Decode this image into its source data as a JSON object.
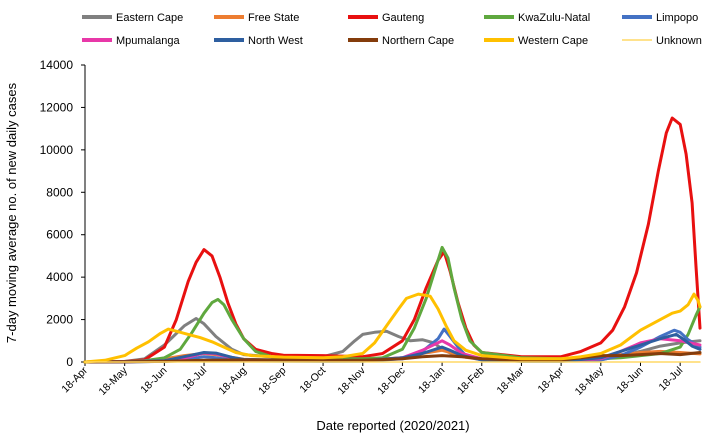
{
  "chart_data": {
    "type": "line",
    "title": "",
    "xlabel": "Date reported (2020/2021)",
    "ylabel": "7-day moving average no. of new daily cases",
    "ylim": [
      0,
      14000
    ],
    "yticks": [
      "0",
      "2000",
      "4000",
      "6000",
      "8000",
      "10000",
      "12000",
      "14000"
    ],
    "x_ticks": [
      "18-Apr",
      "18-May",
      "18-Jun",
      "18-Jul",
      "18-Aug",
      "18-Sep",
      "18-Oct",
      "18-Nov",
      "18-Dec",
      "18-Jan",
      "18-Feb",
      "18-Mar",
      "18-Apr",
      "18-May",
      "18-Jun",
      "18-Jul"
    ],
    "x_end_offset": 15.5,
    "grid": false,
    "legend_position": "top",
    "series": [
      {
        "name": "Eastern Cape",
        "color": "#808080",
        "points": [
          [
            0,
            0
          ],
          [
            1,
            30
          ],
          [
            1.5,
            150
          ],
          [
            2,
            800
          ],
          [
            2.5,
            1700
          ],
          [
            2.8,
            2050
          ],
          [
            3,
            1800
          ],
          [
            3.3,
            1200
          ],
          [
            3.7,
            600
          ],
          [
            4,
            350
          ],
          [
            5,
            200
          ],
          [
            6,
            250
          ],
          [
            6.5,
            500
          ],
          [
            6.8,
            1000
          ],
          [
            7,
            1300
          ],
          [
            7.3,
            1400
          ],
          [
            7.6,
            1450
          ],
          [
            7.9,
            1200
          ],
          [
            8.2,
            1000
          ],
          [
            8.5,
            1050
          ],
          [
            8.8,
            900
          ],
          [
            9,
            600
          ],
          [
            9.3,
            350
          ],
          [
            10,
            150
          ],
          [
            11,
            100
          ],
          [
            12,
            100
          ],
          [
            13,
            100
          ],
          [
            14,
            500
          ],
          [
            14.5,
            750
          ],
          [
            15,
            900
          ],
          [
            15.5,
            1000
          ]
        ]
      },
      {
        "name": "Free State",
        "color": "#ed7d31",
        "points": [
          [
            0,
            0
          ],
          [
            1,
            15
          ],
          [
            1.5,
            60
          ],
          [
            2,
            150
          ],
          [
            2.5,
            300
          ],
          [
            3,
            400
          ],
          [
            3.3,
            350
          ],
          [
            3.7,
            220
          ],
          [
            4,
            130
          ],
          [
            5,
            60
          ],
          [
            6,
            60
          ],
          [
            7,
            80
          ],
          [
            8,
            200
          ],
          [
            8.5,
            400
          ],
          [
            9,
            550
          ],
          [
            9.3,
            400
          ],
          [
            9.6,
            220
          ],
          [
            10,
            110
          ],
          [
            11,
            60
          ],
          [
            12,
            60
          ],
          [
            12.5,
            100
          ],
          [
            13,
            200
          ],
          [
            13.5,
            350
          ],
          [
            14,
            450
          ],
          [
            14.5,
            500
          ],
          [
            15,
            450
          ],
          [
            15.5,
            380
          ]
        ]
      },
      {
        "name": "Gauteng",
        "color": "#e81010",
        "points": [
          [
            0,
            0
          ],
          [
            1,
            20
          ],
          [
            1.5,
            100
          ],
          [
            2,
            700
          ],
          [
            2.3,
            2000
          ],
          [
            2.6,
            3800
          ],
          [
            2.8,
            4700
          ],
          [
            3,
            5300
          ],
          [
            3.2,
            5000
          ],
          [
            3.4,
            4000
          ],
          [
            3.6,
            2800
          ],
          [
            3.8,
            1800
          ],
          [
            4,
            1100
          ],
          [
            4.3,
            600
          ],
          [
            4.7,
            400
          ],
          [
            5,
            320
          ],
          [
            6,
            300
          ],
          [
            7,
            250
          ],
          [
            7.5,
            400
          ],
          [
            8,
            1000
          ],
          [
            8.3,
            2000
          ],
          [
            8.6,
            3500
          ],
          [
            8.9,
            4800
          ],
          [
            9.05,
            5200
          ],
          [
            9.2,
            4300
          ],
          [
            9.4,
            2800
          ],
          [
            9.6,
            1600
          ],
          [
            9.8,
            800
          ],
          [
            10,
            450
          ],
          [
            11,
            250
          ],
          [
            12,
            250
          ],
          [
            12.5,
            500
          ],
          [
            13,
            900
          ],
          [
            13.3,
            1500
          ],
          [
            13.6,
            2600
          ],
          [
            13.9,
            4200
          ],
          [
            14.2,
            6500
          ],
          [
            14.45,
            9000
          ],
          [
            14.65,
            10800
          ],
          [
            14.8,
            11500
          ],
          [
            15,
            11200
          ],
          [
            15.15,
            9800
          ],
          [
            15.3,
            7500
          ],
          [
            15.4,
            4500
          ],
          [
            15.5,
            1600
          ]
        ]
      },
      {
        "name": "KwaZulu-Natal",
        "color": "#5fa83e",
        "points": [
          [
            0,
            0
          ],
          [
            1,
            15
          ],
          [
            1.5,
            60
          ],
          [
            2,
            200
          ],
          [
            2.4,
            600
          ],
          [
            2.7,
            1400
          ],
          [
            3,
            2300
          ],
          [
            3.2,
            2800
          ],
          [
            3.35,
            2950
          ],
          [
            3.5,
            2700
          ],
          [
            3.7,
            2000
          ],
          [
            4,
            1100
          ],
          [
            4.3,
            500
          ],
          [
            4.7,
            250
          ],
          [
            5,
            200
          ],
          [
            6,
            150
          ],
          [
            7,
            150
          ],
          [
            7.5,
            200
          ],
          [
            8,
            600
          ],
          [
            8.3,
            1600
          ],
          [
            8.6,
            3000
          ],
          [
            8.85,
            4500
          ],
          [
            9,
            5400
          ],
          [
            9.15,
            4900
          ],
          [
            9.3,
            3500
          ],
          [
            9.5,
            2000
          ],
          [
            9.7,
            1000
          ],
          [
            10,
            450
          ],
          [
            11,
            200
          ],
          [
            12,
            150
          ],
          [
            13,
            150
          ],
          [
            13.5,
            200
          ],
          [
            14,
            300
          ],
          [
            14.5,
            400
          ],
          [
            15,
            700
          ],
          [
            15.2,
            1300
          ],
          [
            15.4,
            2200
          ],
          [
            15.5,
            2600
          ]
        ]
      },
      {
        "name": "Limpopo",
        "color": "#4472c4",
        "points": [
          [
            0,
            0
          ],
          [
            1,
            5
          ],
          [
            2,
            30
          ],
          [
            2.5,
            100
          ],
          [
            3,
            250
          ],
          [
            3.3,
            200
          ],
          [
            3.7,
            100
          ],
          [
            4,
            50
          ],
          [
            6,
            30
          ],
          [
            7,
            40
          ],
          [
            8,
            150
          ],
          [
            8.5,
            500
          ],
          [
            8.9,
            1100
          ],
          [
            9.05,
            1550
          ],
          [
            9.2,
            1200
          ],
          [
            9.4,
            700
          ],
          [
            9.6,
            300
          ],
          [
            10,
            100
          ],
          [
            11,
            40
          ],
          [
            12,
            40
          ],
          [
            13,
            100
          ],
          [
            13.5,
            300
          ],
          [
            14,
            700
          ],
          [
            14.5,
            1200
          ],
          [
            14.85,
            1500
          ],
          [
            15,
            1400
          ],
          [
            15.2,
            1050
          ],
          [
            15.5,
            700
          ]
        ]
      },
      {
        "name": "Mpumalanga",
        "color": "#e838a8",
        "points": [
          [
            0,
            0
          ],
          [
            1,
            8
          ],
          [
            2,
            60
          ],
          [
            2.5,
            180
          ],
          [
            3,
            420
          ],
          [
            3.3,
            380
          ],
          [
            3.7,
            200
          ],
          [
            4,
            100
          ],
          [
            6,
            50
          ],
          [
            7,
            60
          ],
          [
            8,
            200
          ],
          [
            8.5,
            550
          ],
          [
            9,
            1000
          ],
          [
            9.2,
            800
          ],
          [
            9.5,
            400
          ],
          [
            10,
            150
          ],
          [
            11,
            50
          ],
          [
            12,
            50
          ],
          [
            13,
            150
          ],
          [
            13.5,
            500
          ],
          [
            14,
            900
          ],
          [
            14.5,
            1100
          ],
          [
            15,
            1000
          ],
          [
            15.5,
            800
          ]
        ]
      },
      {
        "name": "North West",
        "color": "#2e5fa0",
        "points": [
          [
            0,
            0
          ],
          [
            1,
            8
          ],
          [
            2,
            60
          ],
          [
            2.5,
            250
          ],
          [
            3,
            450
          ],
          [
            3.3,
            420
          ],
          [
            3.7,
            220
          ],
          [
            4,
            120
          ],
          [
            6,
            60
          ],
          [
            7,
            60
          ],
          [
            8,
            200
          ],
          [
            8.5,
            400
          ],
          [
            9,
            700
          ],
          [
            9.2,
            550
          ],
          [
            9.5,
            300
          ],
          [
            10,
            100
          ],
          [
            11,
            40
          ],
          [
            12,
            40
          ],
          [
            13,
            200
          ],
          [
            13.5,
            500
          ],
          [
            14,
            800
          ],
          [
            14.5,
            1100
          ],
          [
            14.9,
            1300
          ],
          [
            15.1,
            1050
          ],
          [
            15.3,
            750
          ],
          [
            15.5,
            600
          ]
        ]
      },
      {
        "name": "Northern Cape",
        "color": "#843c0c",
        "points": [
          [
            0,
            0
          ],
          [
            1,
            8
          ],
          [
            2,
            30
          ],
          [
            3,
            80
          ],
          [
            4,
            100
          ],
          [
            5,
            100
          ],
          [
            6,
            80
          ],
          [
            7,
            80
          ],
          [
            8,
            150
          ],
          [
            8.5,
            250
          ],
          [
            9,
            300
          ],
          [
            9.5,
            250
          ],
          [
            10,
            150
          ],
          [
            11,
            80
          ],
          [
            12,
            80
          ],
          [
            12.5,
            200
          ],
          [
            13,
            300
          ],
          [
            13.5,
            300
          ],
          [
            14,
            350
          ],
          [
            14.5,
            400
          ],
          [
            15,
            350
          ],
          [
            15.5,
            450
          ]
        ]
      },
      {
        "name": "Western Cape",
        "color": "#ffc000",
        "points": [
          [
            0,
            0
          ],
          [
            0.5,
            80
          ],
          [
            1,
            300
          ],
          [
            1.3,
            650
          ],
          [
            1.6,
            950
          ],
          [
            1.9,
            1350
          ],
          [
            2.1,
            1550
          ],
          [
            2.3,
            1450
          ],
          [
            2.6,
            1300
          ],
          [
            2.9,
            1150
          ],
          [
            3.2,
            950
          ],
          [
            3.5,
            700
          ],
          [
            3.8,
            450
          ],
          [
            4.2,
            300
          ],
          [
            5,
            230
          ],
          [
            6,
            200
          ],
          [
            6.5,
            250
          ],
          [
            7,
            400
          ],
          [
            7.3,
            900
          ],
          [
            7.6,
            1700
          ],
          [
            7.9,
            2500
          ],
          [
            8.1,
            3000
          ],
          [
            8.4,
            3200
          ],
          [
            8.7,
            3100
          ],
          [
            8.9,
            2500
          ],
          [
            9.1,
            1700
          ],
          [
            9.3,
            1000
          ],
          [
            9.6,
            550
          ],
          [
            10,
            300
          ],
          [
            11,
            150
          ],
          [
            12,
            150
          ],
          [
            12.5,
            250
          ],
          [
            13,
            400
          ],
          [
            13.5,
            800
          ],
          [
            14,
            1500
          ],
          [
            14.5,
            2000
          ],
          [
            14.8,
            2300
          ],
          [
            15,
            2400
          ],
          [
            15.2,
            2700
          ],
          [
            15.35,
            3200
          ],
          [
            15.45,
            2900
          ],
          [
            15.5,
            2600
          ]
        ]
      },
      {
        "name": "Unknown",
        "color": "#ffd966",
        "points": [
          [
            0,
            0
          ],
          [
            15.5,
            0
          ]
        ]
      }
    ]
  }
}
